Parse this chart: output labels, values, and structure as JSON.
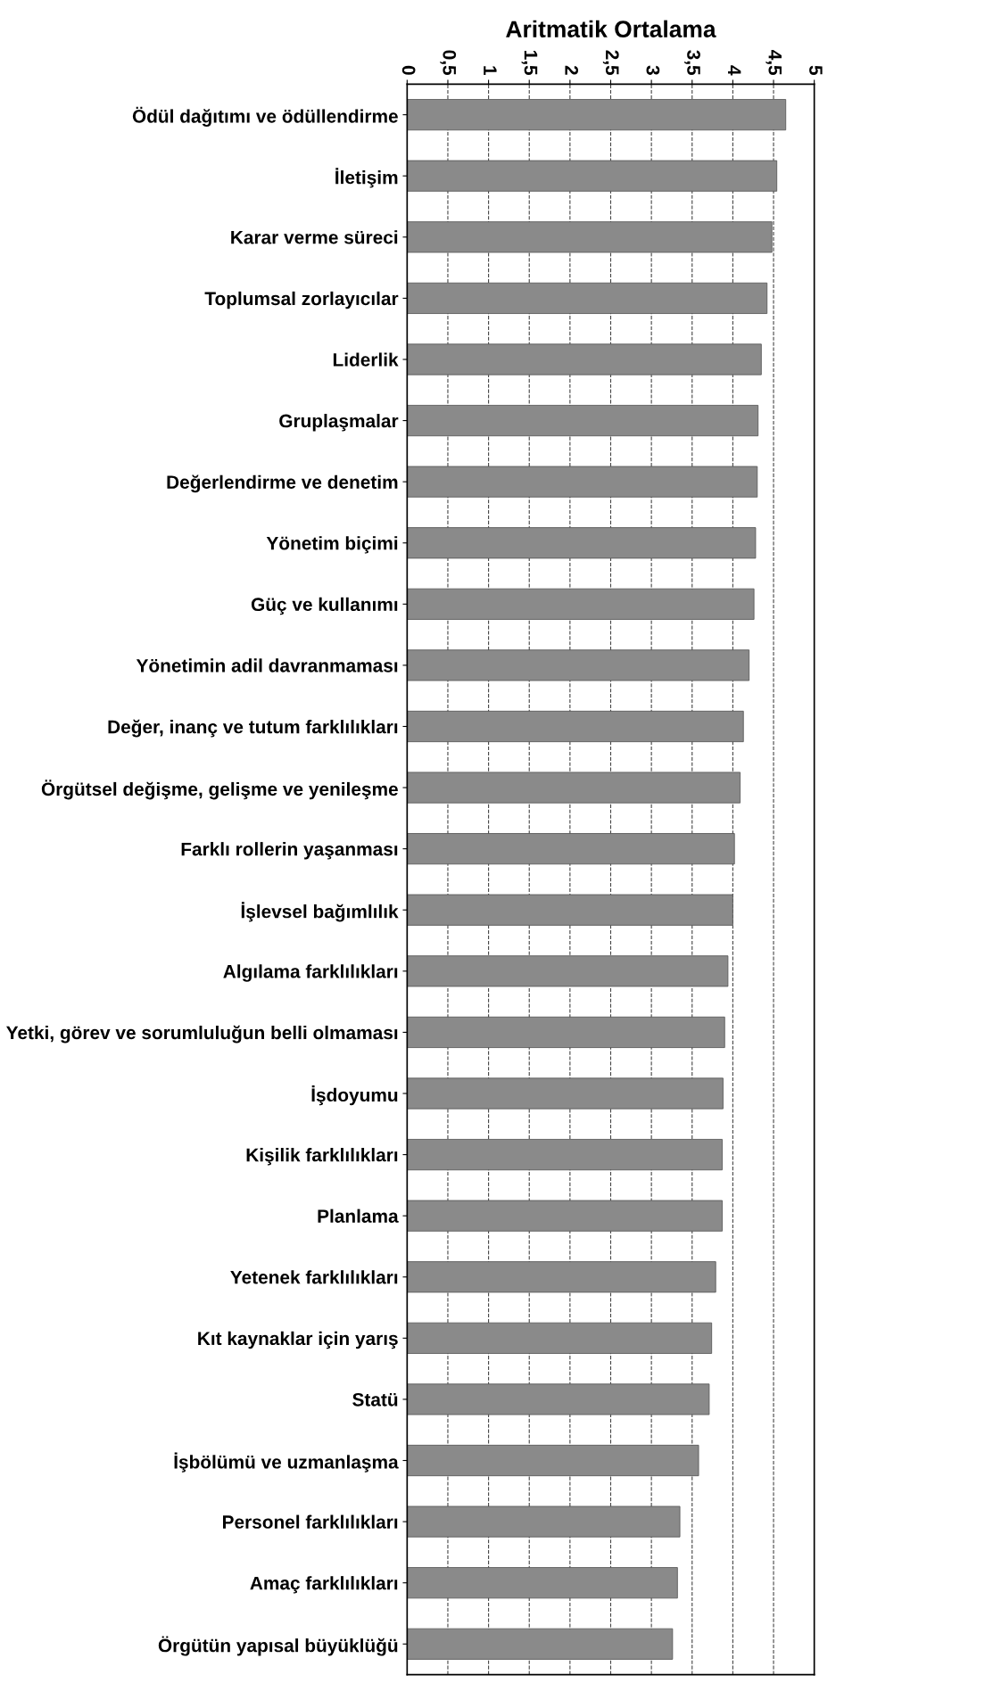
{
  "chart_data": {
    "type": "bar",
    "orientation": "horizontal",
    "xlabel": "Aritmatik Ortalama",
    "categories": [
      "Ödül dağıtımı ve ödüllendirme",
      "İletişim",
      "Karar verme süreci",
      "Toplumsal zorlayıcılar",
      "Liderlik",
      "Gruplaşmalar",
      "Değerlendirme ve denetim",
      "Yönetim biçimi",
      "Güç ve kullanımı",
      "Yönetimin adil davranmaması",
      "Değer, inanç ve tutum farklılıkları",
      "Örgütsel değişme, gelişme ve yenileşme",
      "Farklı rollerin yaşanması",
      "İşlevsel bağımlılık",
      "Algılama farklılıkları",
      "Yetki, görev ve sorumluluğun belli olmaması",
      "İşdoyumu",
      "Kişilik farklılıkları",
      "Planlama",
      "Yetenek farklılıkları",
      "Kıt kaynaklar için yarış",
      "Statü",
      "İşbölümü ve uzmanlaşma",
      "Personel farklılıkları",
      "Amaç farklılıkları",
      "Örgütün yapısal büyüklüğü"
    ],
    "values": [
      4.65,
      4.54,
      4.48,
      4.42,
      4.35,
      4.31,
      4.3,
      4.28,
      4.26,
      4.2,
      4.13,
      4.09,
      4.02,
      4.0,
      3.94,
      3.9,
      3.88,
      3.87,
      3.87,
      3.79,
      3.74,
      3.71,
      3.58,
      3.35,
      3.32,
      3.26
    ],
    "color": "#8a8a8a",
    "xlim": [
      0,
      5
    ],
    "xticks": [
      0,
      {
        "value": 0.5,
        "label": "0,5"
      },
      1,
      {
        "value": 1.5,
        "label": "1,5"
      },
      2,
      {
        "value": 2.5,
        "label": "2,5"
      },
      3,
      {
        "value": 3.5,
        "label": "3,5"
      },
      4,
      {
        "value": 4.5,
        "label": "4,5"
      },
      5
    ],
    "grid": "x",
    "line_style": "dashed"
  }
}
